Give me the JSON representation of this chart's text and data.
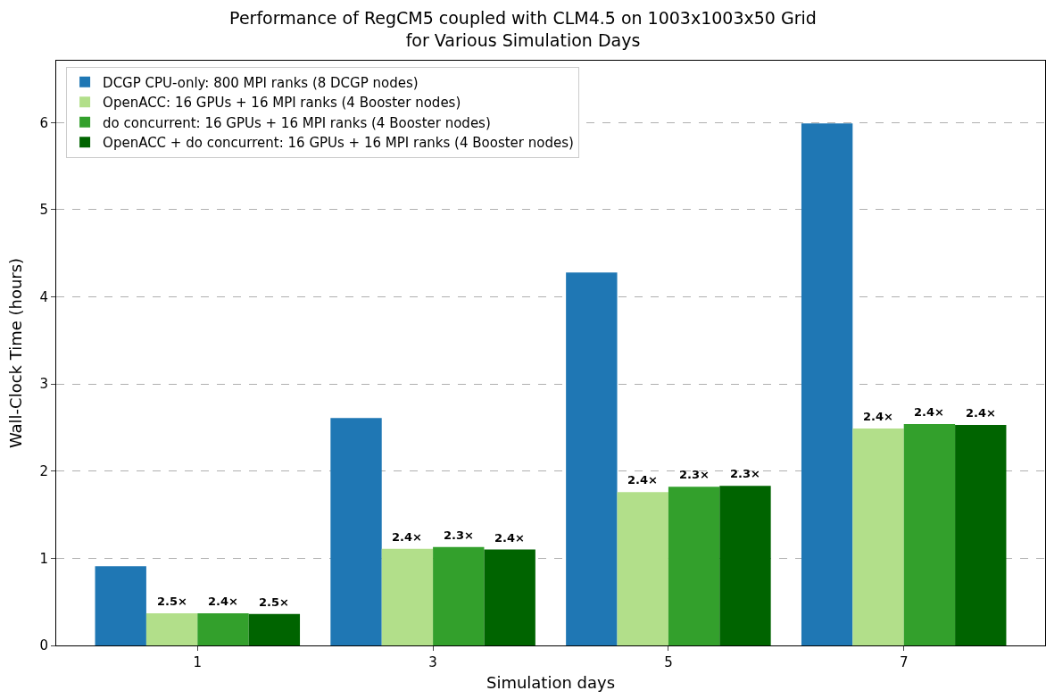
{
  "chart_data": {
    "type": "bar",
    "title": "Performance of RegCM5 coupled with CLM4.5 on 1003x1003x50 Grid\nfor Various Simulation Days",
    "xlabel": "Simulation days",
    "ylabel": "Wall-Clock Time (hours)",
    "categories": [
      "1",
      "3",
      "5",
      "7"
    ],
    "series": [
      {
        "name": "DCGP CPU-only: 800 MPI ranks (8 DCGP nodes)",
        "color": "#1f77b4",
        "values": [
          0.91,
          2.61,
          4.28,
          5.99
        ]
      },
      {
        "name": "OpenACC: 16 GPUs + 16 MPI ranks (4 Booster nodes)",
        "color": "#b2df8a",
        "values": [
          0.37,
          1.11,
          1.76,
          2.49
        ]
      },
      {
        "name": "do concurrent: 16 GPUs + 16 MPI ranks (4 Booster nodes)",
        "color": "#33a02c",
        "values": [
          0.37,
          1.13,
          1.82,
          2.54
        ]
      },
      {
        "name": "OpenACC + do concurrent: 16 GPUs + 16 MPI ranks (4 Booster nodes)",
        "color": "#006400",
        "values": [
          0.36,
          1.1,
          1.83,
          2.53
        ]
      }
    ],
    "annotations": [
      "2.5×",
      "2.4×",
      "2.5×",
      "2.4×",
      "2.3×",
      "2.4×",
      "2.4×",
      "2.3×",
      "2.3×",
      "2.4×",
      "2.4×",
      "2.4×"
    ],
    "ylim": [
      0,
      6.71
    ],
    "yticks": [
      0,
      1,
      2,
      3,
      4,
      5,
      6
    ],
    "grid": "y",
    "legend": "top left"
  }
}
